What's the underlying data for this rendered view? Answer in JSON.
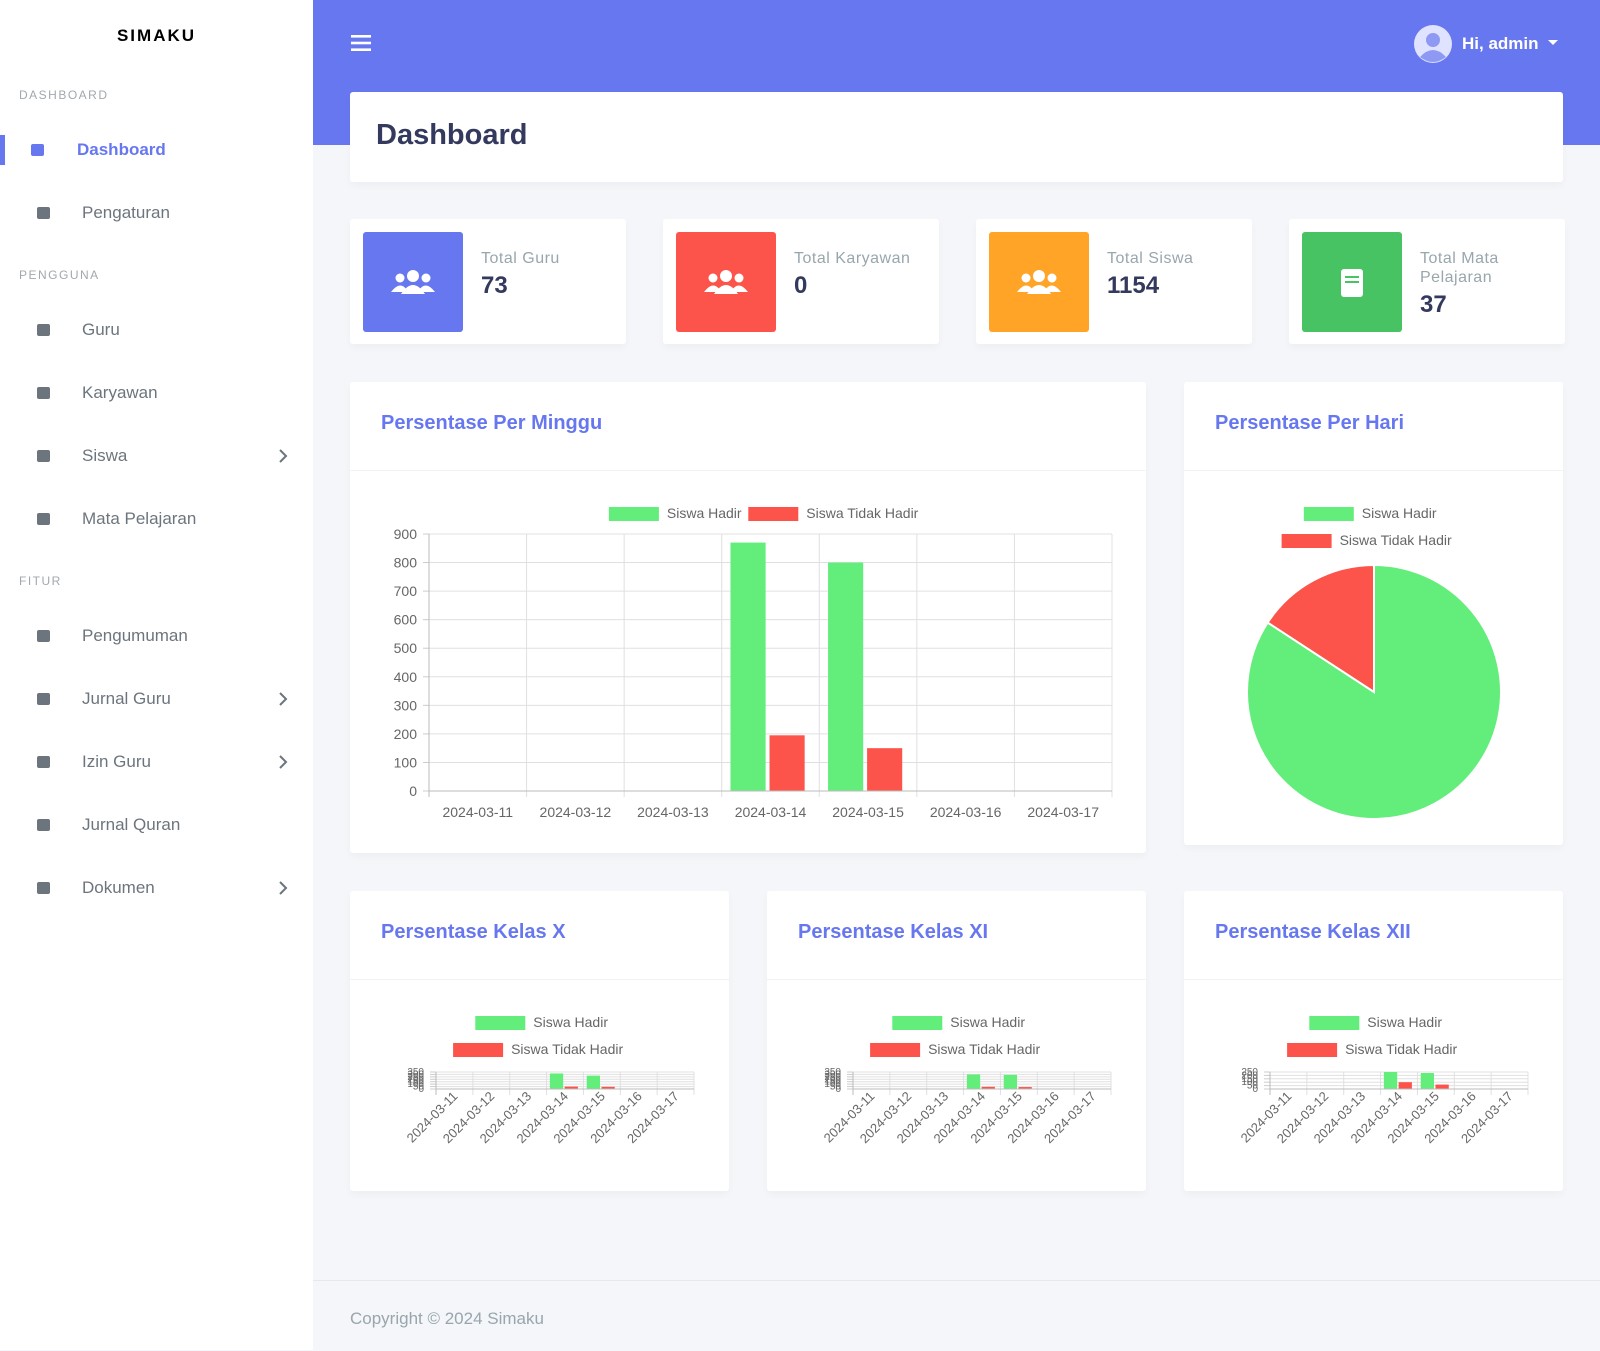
{
  "sidebar": {
    "brand": "SIMAKU",
    "sections": [
      {
        "title": "DASHBOARD",
        "items": [
          {
            "label": "Dashboard",
            "active": true
          },
          {
            "label": "Pengaturan"
          }
        ]
      },
      {
        "title": "PENGGUNA",
        "items": [
          {
            "label": "Guru"
          },
          {
            "label": "Karyawan"
          },
          {
            "label": "Siswa",
            "submenu": true
          },
          {
            "label": "Mata Pelajaran"
          }
        ]
      },
      {
        "title": "FITUR",
        "items": [
          {
            "label": "Pengumuman"
          },
          {
            "label": "Jurnal Guru",
            "submenu": true
          },
          {
            "label": "Izin Guru",
            "submenu": true
          },
          {
            "label": "Jurnal Quran"
          },
          {
            "label": "Dokumen",
            "submenu": true
          }
        ]
      }
    ]
  },
  "topbar": {
    "user": "Hi, admin"
  },
  "page_title": "Dashboard",
  "stats": [
    {
      "label": "Total Guru",
      "value": 73,
      "color": "#6777ef"
    },
    {
      "label": "Total Karyawan",
      "value": 0,
      "color": "#fc544b"
    },
    {
      "label": "Total Siswa",
      "value": 1154,
      "color": "#ffa426"
    },
    {
      "label": "Total Mata Pelajaran",
      "value": 37,
      "color": "#47c363"
    }
  ],
  "chart_data": [
    {
      "type": "bar",
      "title": "Persentase Per Minggu",
      "categories": [
        "2024-03-11",
        "2024-03-12",
        "2024-03-13",
        "2024-03-14",
        "2024-03-15",
        "2024-03-16",
        "2024-03-17"
      ],
      "series": [
        {
          "name": "Siswa Hadir",
          "color": "#63ed7a",
          "values": [
            0,
            0,
            0,
            870,
            800,
            0,
            0
          ]
        },
        {
          "name": "Siswa Tidak Hadir",
          "color": "#fc544b",
          "values": [
            0,
            0,
            0,
            195,
            150,
            0,
            0
          ]
        }
      ],
      "ylim": [
        0,
        900
      ],
      "yticks": [
        0,
        100,
        200,
        300,
        400,
        500,
        600,
        700,
        800,
        900
      ],
      "grid": true,
      "legend": "top"
    },
    {
      "type": "pie",
      "title": "Persentase Per Hari",
      "categories": [
        "Siswa Hadir",
        "Siswa Tidak Hadir"
      ],
      "values": [
        800,
        150
      ],
      "colors": [
        "#63ed7a",
        "#fc544b"
      ],
      "legend": "top"
    },
    {
      "type": "bar",
      "title": "Persentase Kelas X",
      "categories": [
        "2024-03-11",
        "2024-03-12",
        "2024-03-13",
        "2024-03-14",
        "2024-03-15",
        "2024-03-16",
        "2024-03-17"
      ],
      "series": [
        {
          "name": "Siswa Hadir",
          "color": "#63ed7a",
          "values": [
            0,
            0,
            0,
            320,
            275,
            0,
            0
          ]
        },
        {
          "name": "Siswa Tidak Hadir",
          "color": "#fc544b",
          "values": [
            0,
            0,
            0,
            50,
            45,
            0,
            0
          ]
        }
      ],
      "ylim": [
        0,
        350
      ],
      "yticks": [
        0,
        50,
        100,
        150,
        200,
        250,
        300,
        350
      ],
      "grid": true,
      "legend": "top"
    },
    {
      "type": "bar",
      "title": "Persentase Kelas XI",
      "categories": [
        "2024-03-11",
        "2024-03-12",
        "2024-03-13",
        "2024-03-14",
        "2024-03-15",
        "2024-03-16",
        "2024-03-17"
      ],
      "series": [
        {
          "name": "Siswa Hadir",
          "color": "#63ed7a",
          "values": [
            0,
            0,
            0,
            300,
            290,
            0,
            0
          ]
        },
        {
          "name": "Siswa Tidak Hadir",
          "color": "#fc544b",
          "values": [
            0,
            0,
            0,
            45,
            40,
            0,
            0
          ]
        }
      ],
      "ylim": [
        0,
        350
      ],
      "yticks": [
        0,
        50,
        100,
        150,
        200,
        250,
        300,
        350
      ],
      "grid": true,
      "legend": "top"
    },
    {
      "type": "bar",
      "title": "Persentase Kelas XII",
      "categories": [
        "2024-03-11",
        "2024-03-12",
        "2024-03-13",
        "2024-03-14",
        "2024-03-15",
        "2024-03-16",
        "2024-03-17"
      ],
      "series": [
        {
          "name": "Siswa Hadir",
          "color": "#63ed7a",
          "values": [
            0,
            0,
            0,
            250,
            235,
            0,
            0
          ]
        },
        {
          "name": "Siswa Tidak Hadir",
          "color": "#fc544b",
          "values": [
            0,
            0,
            0,
            100,
            65,
            0,
            0
          ]
        }
      ],
      "ylim": [
        0,
        250
      ],
      "yticks": [
        0,
        50,
        100,
        150,
        200,
        250
      ],
      "grid": true,
      "legend": "top"
    }
  ],
  "footer": "Copyright © 2024 Simaku"
}
